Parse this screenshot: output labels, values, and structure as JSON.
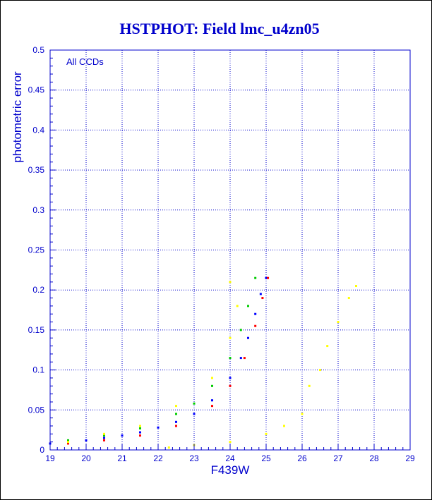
{
  "chart_data": {
    "type": "scatter",
    "title": "HSTPHOT: Field lmc_u4zn05",
    "xlabel": "F439W",
    "ylabel": "photometric error",
    "annotation": "All CCDs",
    "xlim": [
      19,
      29
    ],
    "ylim": [
      0,
      0.5
    ],
    "x_ticks": [
      "19",
      "20",
      "21",
      "22",
      "23",
      "24",
      "25",
      "26",
      "27",
      "28",
      "29"
    ],
    "y_ticks": [
      "0",
      "0.05",
      "0.1",
      "0.15",
      "0.2",
      "0.25",
      "0.3",
      "0.35",
      "0.4",
      "0.45",
      "0.5"
    ],
    "grid": true,
    "error_cap": 0.215,
    "series": [
      {
        "color": "#0000ff",
        "points": [
          [
            19.0,
            0.008
          ],
          [
            19.5,
            0.01
          ],
          [
            20.0,
            0.012
          ],
          [
            20.5,
            0.015
          ],
          [
            21.0,
            0.018
          ],
          [
            21.5,
            0.022
          ],
          [
            22.0,
            0.028
          ],
          [
            22.5,
            0.035
          ],
          [
            23.0,
            0.045
          ],
          [
            23.5,
            0.062
          ],
          [
            24.0,
            0.09
          ],
          [
            24.3,
            0.115
          ],
          [
            24.5,
            0.14
          ],
          [
            24.7,
            0.17
          ],
          [
            24.85,
            0.195
          ],
          [
            25.0,
            0.215
          ]
        ]
      },
      {
        "color": "#ff0000",
        "points": [
          [
            19.5,
            0.008
          ],
          [
            20.5,
            0.012
          ],
          [
            21.5,
            0.018
          ],
          [
            22.5,
            0.03
          ],
          [
            23.5,
            0.055
          ],
          [
            24.0,
            0.08
          ],
          [
            24.4,
            0.115
          ],
          [
            24.7,
            0.155
          ],
          [
            24.9,
            0.19
          ],
          [
            25.05,
            0.215
          ]
        ]
      },
      {
        "color": "#00cc00",
        "points": [
          [
            19.5,
            0.012
          ],
          [
            20.5,
            0.018
          ],
          [
            21.5,
            0.027
          ],
          [
            22.5,
            0.045
          ],
          [
            23.0,
            0.058
          ],
          [
            23.5,
            0.08
          ],
          [
            24.0,
            0.115
          ],
          [
            24.3,
            0.15
          ],
          [
            24.5,
            0.18
          ],
          [
            24.7,
            0.215
          ]
        ]
      },
      {
        "color": "#ffff00",
        "points": [
          [
            19.5,
            0.01
          ],
          [
            20.5,
            0.02
          ],
          [
            21.5,
            0.03
          ],
          [
            22.5,
            0.055
          ],
          [
            23.5,
            0.09
          ],
          [
            24.0,
            0.14
          ],
          [
            24.2,
            0.18
          ],
          [
            24.0,
            0.21
          ],
          [
            22.3,
            0.003
          ],
          [
            23.0,
            0.006
          ],
          [
            24.0,
            0.01
          ],
          [
            25.0,
            0.02
          ],
          [
            25.5,
            0.03
          ],
          [
            26.0,
            0.045
          ],
          [
            26.2,
            0.08
          ],
          [
            26.5,
            0.1
          ],
          [
            26.7,
            0.13
          ],
          [
            27.0,
            0.16
          ],
          [
            27.3,
            0.19
          ],
          [
            27.5,
            0.205
          ]
        ]
      }
    ]
  }
}
